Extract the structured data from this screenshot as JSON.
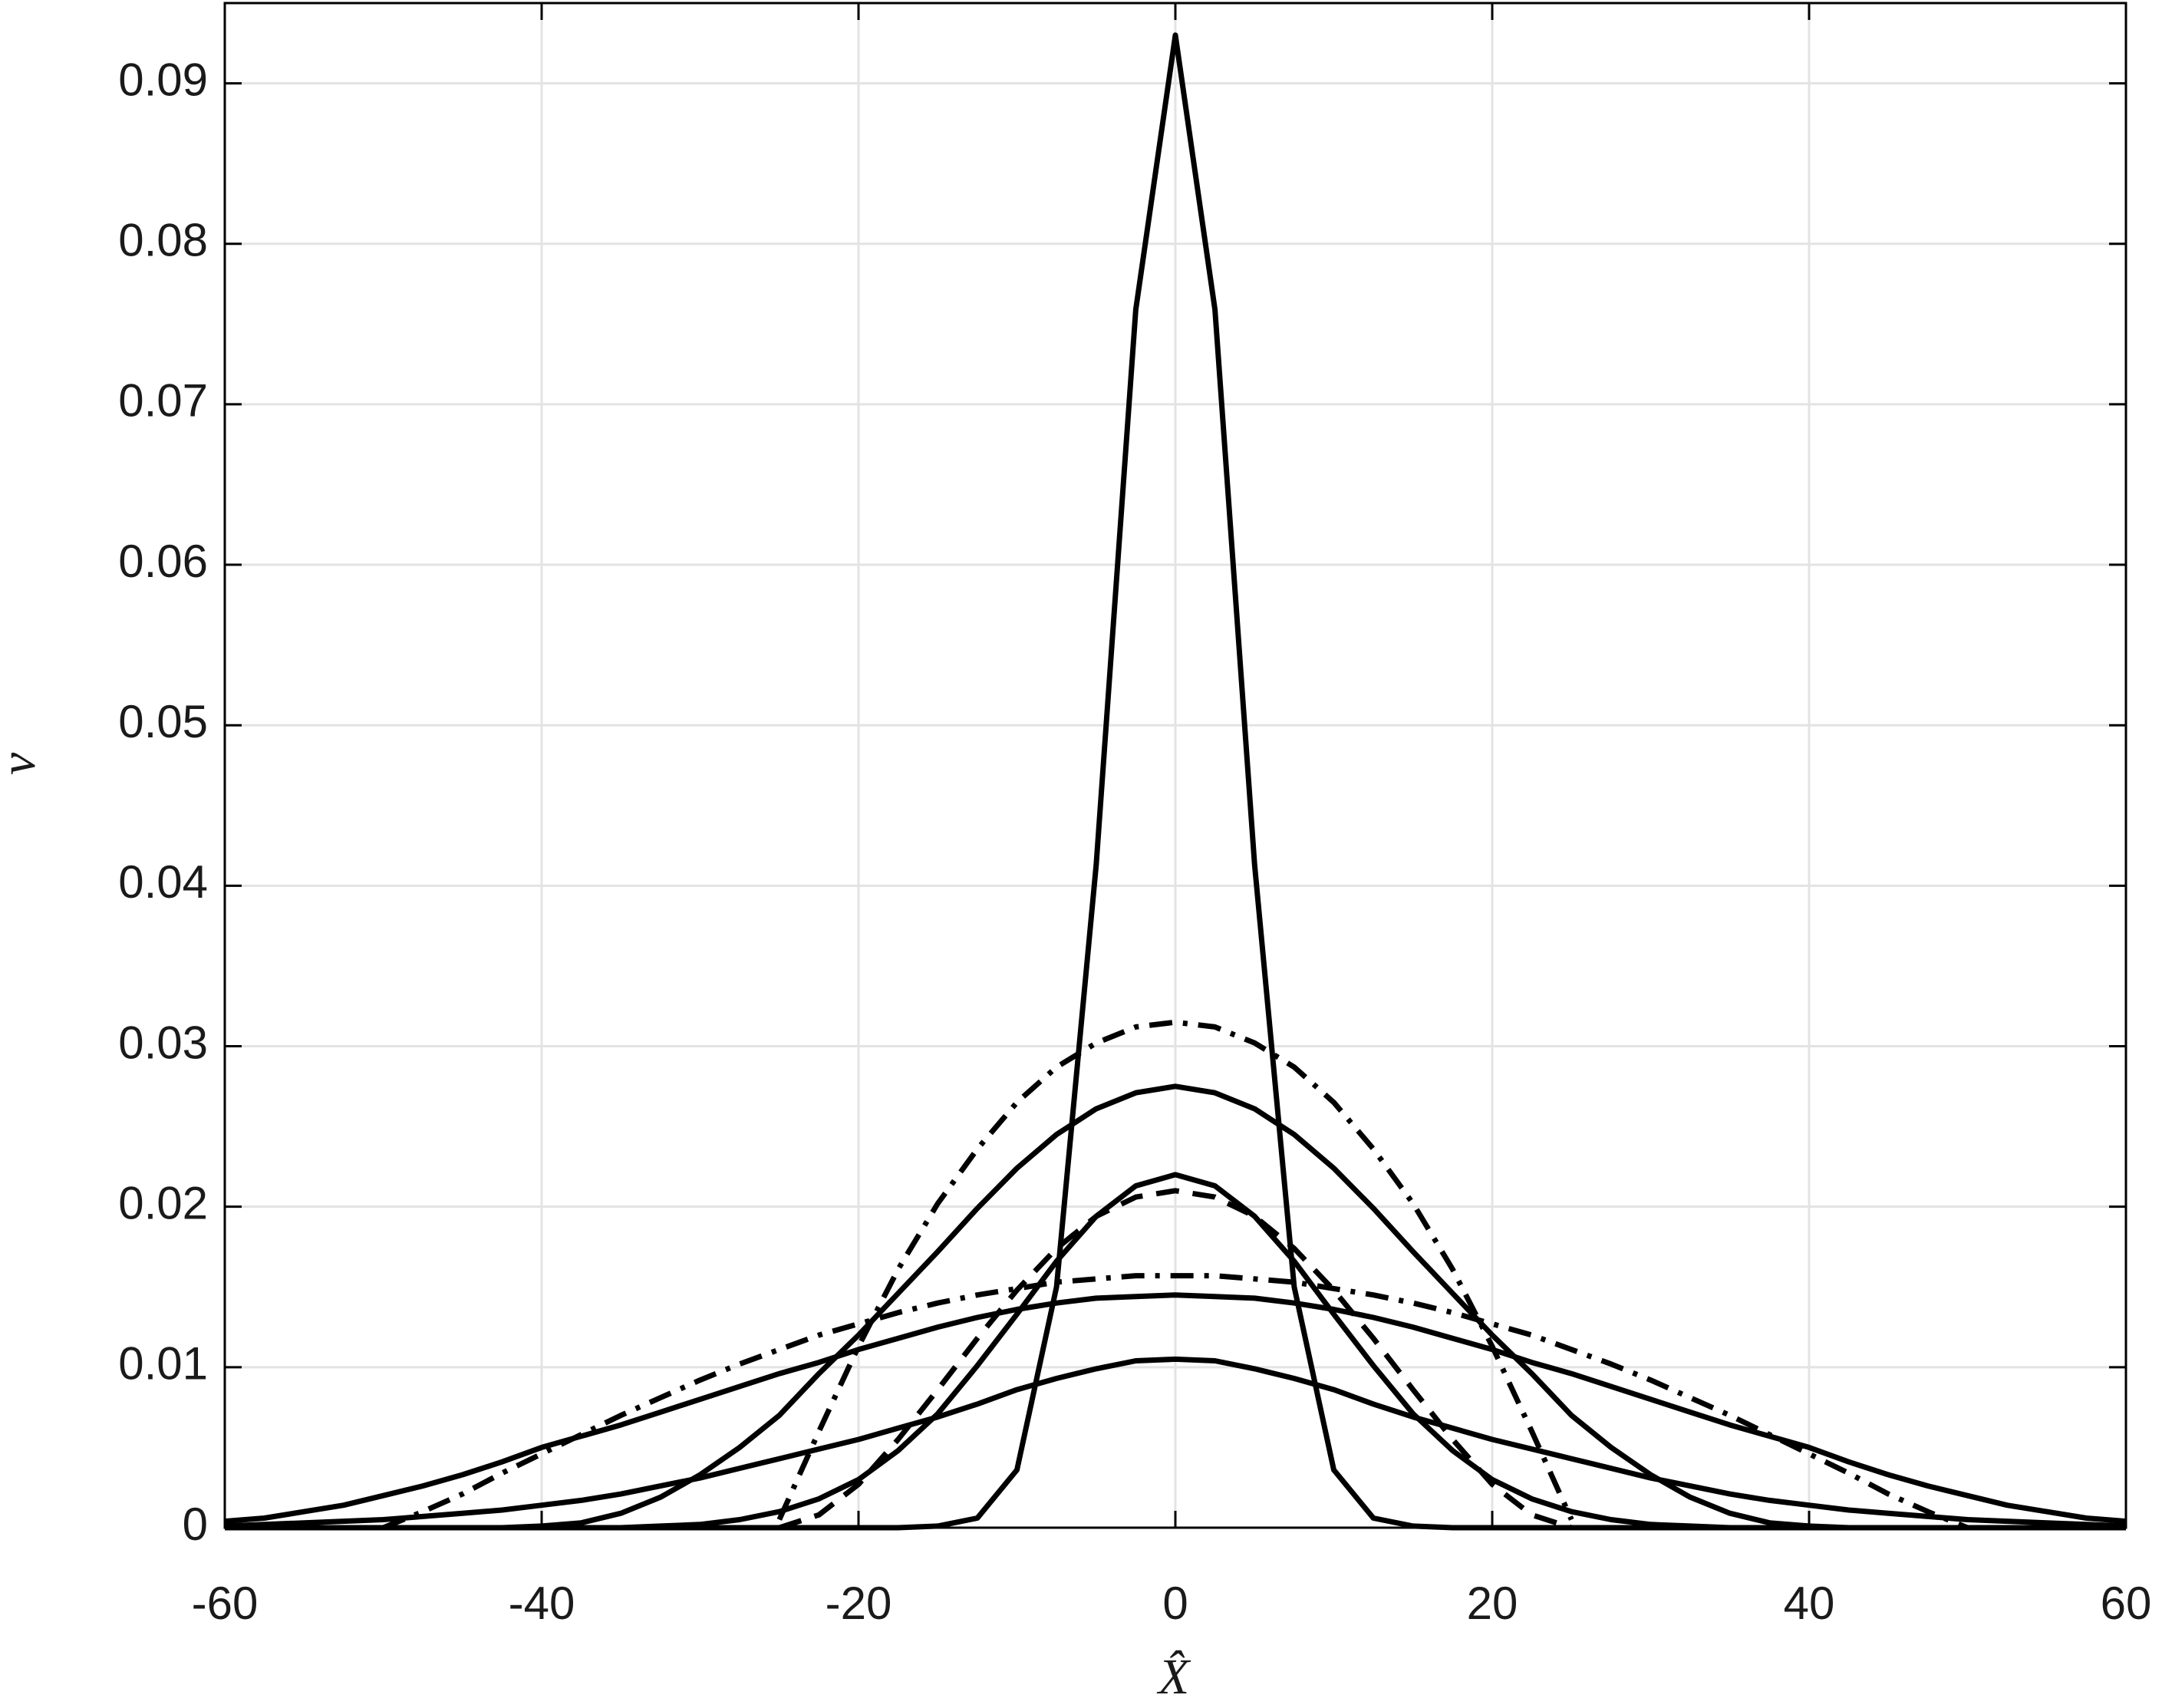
{
  "chart_data": {
    "type": "line",
    "xlabel": "X̂",
    "ylabel": "v",
    "xlim": [
      -60,
      60
    ],
    "xticks": [
      -60,
      -40,
      -20,
      0,
      20,
      40,
      60
    ],
    "ylim": [
      0,
      0.095
    ],
    "yticks": [
      0,
      0.01,
      0.02,
      0.03,
      0.04,
      0.05,
      0.06,
      0.07,
      0.08,
      0.09
    ],
    "grid": true,
    "x": [
      -60,
      -57.5,
      -55,
      -52.5,
      -50,
      -47.5,
      -45,
      -42.5,
      -40,
      -37.5,
      -35,
      -32.5,
      -30,
      -27.5,
      -25,
      -22.5,
      -20,
      -17.5,
      -15,
      -12.5,
      -10,
      -7.5,
      -5,
      -2.5,
      0,
      2.5,
      5,
      7.5,
      10,
      12.5,
      15,
      17.5,
      20,
      22.5,
      25,
      27.5,
      30,
      32.5,
      35,
      37.5,
      40,
      42.5,
      45,
      47.5,
      50,
      52.5,
      55,
      57.5,
      60
    ],
    "series": [
      {
        "color": "#000000",
        "dash": "solid",
        "values": [
          0,
          0,
          0,
          0,
          0,
          0,
          0,
          0,
          0,
          0,
          0,
          0,
          0,
          0,
          0,
          0,
          0,
          0,
          0.0001,
          0.0006,
          0.0036,
          0.015,
          0.0413,
          0.0759,
          0.093,
          0.0759,
          0.0413,
          0.015,
          0.0036,
          0.0006,
          0.0001,
          0,
          0,
          0,
          0,
          0,
          0,
          0,
          0,
          0,
          0,
          0,
          0,
          0,
          0,
          0,
          0,
          0,
          0
        ]
      },
      {
        "color": "#000000",
        "dash": "solid",
        "values": [
          0,
          0,
          0,
          0,
          0,
          0,
          0,
          0,
          0.0001,
          0.0003,
          0.0009,
          0.0019,
          0.0033,
          0.005,
          0.007,
          0.0096,
          0.012,
          0.0146,
          0.0172,
          0.0199,
          0.0224,
          0.0245,
          0.0261,
          0.0271,
          0.0275,
          0.0271,
          0.0261,
          0.0245,
          0.0224,
          0.0199,
          0.0172,
          0.0146,
          0.012,
          0.0096,
          0.007,
          0.005,
          0.0033,
          0.0019,
          0.0009,
          0.0003,
          0.0001,
          0,
          0,
          0,
          0,
          0,
          0,
          0,
          0
        ]
      },
      {
        "color": "#000000",
        "dash": "dashdot",
        "values": [
          null,
          null,
          null,
          null,
          null,
          null,
          null,
          null,
          null,
          null,
          null,
          null,
          null,
          null,
          0.0005,
          0.006,
          0.0113,
          0.0161,
          0.0202,
          0.0236,
          0.0265,
          0.0287,
          0.0302,
          0.0312,
          0.0315,
          0.0312,
          0.0302,
          0.0287,
          0.0265,
          0.0236,
          0.0202,
          0.0161,
          0.0113,
          0.006,
          0.0005,
          null,
          null,
          null,
          null,
          null,
          null,
          null,
          null,
          null,
          null,
          null,
          null,
          null,
          null
        ]
      },
      {
        "color": "#000000",
        "dash": "solid",
        "values": [
          0,
          0,
          0,
          0,
          0,
          0,
          0,
          0,
          0,
          0,
          0,
          0.0001,
          0.0002,
          0.0005,
          0.001,
          0.0018,
          0.003,
          0.0048,
          0.0071,
          0.0101,
          0.0133,
          0.0166,
          0.0194,
          0.0213,
          0.022,
          0.0213,
          0.0194,
          0.0166,
          0.0133,
          0.0101,
          0.0071,
          0.0048,
          0.003,
          0.0018,
          0.001,
          0.0005,
          0.0002,
          0.0001,
          0,
          0,
          0,
          0,
          0,
          0,
          0,
          0,
          0,
          0,
          0
        ]
      },
      {
        "color": "#000000",
        "dash": "dashed",
        "values": [
          null,
          null,
          null,
          null,
          null,
          null,
          null,
          null,
          null,
          null,
          null,
          null,
          null,
          null,
          0,
          0.0008,
          0.0027,
          0.0055,
          0.0086,
          0.0118,
          0.0148,
          0.0174,
          0.0194,
          0.0206,
          0.021,
          0.0206,
          0.0194,
          0.0174,
          0.0148,
          0.0118,
          0.0086,
          0.0055,
          0.0027,
          0.0008,
          0,
          null,
          null,
          null,
          null,
          null,
          null,
          null,
          null,
          null,
          null,
          null,
          null,
          null,
          null
        ]
      },
      {
        "color": "#000000",
        "dash": "solid",
        "values": [
          0.0004,
          0.0006,
          0.001,
          0.0014,
          0.002,
          0.0026,
          0.0033,
          0.0041,
          0.005,
          0.0057,
          0.0064,
          0.0072,
          0.008,
          0.0088,
          0.0096,
          0.0103,
          0.0111,
          0.0118,
          0.0125,
          0.0131,
          0.0136,
          0.014,
          0.0143,
          0.0144,
          0.0145,
          0.0144,
          0.0143,
          0.014,
          0.0136,
          0.0131,
          0.0125,
          0.0118,
          0.0111,
          0.0103,
          0.0096,
          0.0088,
          0.008,
          0.0072,
          0.0064,
          0.0057,
          0.005,
          0.0041,
          0.0033,
          0.0026,
          0.002,
          0.0014,
          0.001,
          0.0006,
          0.0004
        ]
      },
      {
        "color": "#000000",
        "dash": "dashdot",
        "values": [
          null,
          null,
          null,
          null,
          0,
          0.001,
          0.0021,
          0.0034,
          0.0046,
          0.0058,
          0.007,
          0.0081,
          0.0092,
          0.0102,
          0.0111,
          0.012,
          0.0127,
          0.0134,
          0.014,
          0.0145,
          0.0149,
          0.0153,
          0.0155,
          0.0157,
          0.0157,
          0.0157,
          0.0155,
          0.0153,
          0.0149,
          0.0145,
          0.014,
          0.0134,
          0.0127,
          0.012,
          0.0111,
          0.0102,
          0.0092,
          0.0081,
          0.007,
          0.0058,
          0.0046,
          0.0034,
          0.0021,
          0.001,
          0,
          null,
          null,
          null,
          null
        ]
      },
      {
        "color": "#000000",
        "dash": "solid",
        "values": [
          0.0001,
          0.0002,
          0.0003,
          0.0004,
          0.0005,
          0.0007,
          0.0009,
          0.0011,
          0.0014,
          0.0017,
          0.0021,
          0.0026,
          0.0031,
          0.0037,
          0.0043,
          0.0049,
          0.0055,
          0.0062,
          0.0069,
          0.0077,
          0.0086,
          0.0093,
          0.0099,
          0.0104,
          0.0105,
          0.0104,
          0.0099,
          0.0093,
          0.0086,
          0.0077,
          0.0069,
          0.0062,
          0.0055,
          0.0049,
          0.0043,
          0.0037,
          0.0031,
          0.0026,
          0.0021,
          0.0017,
          0.0014,
          0.0011,
          0.0009,
          0.0007,
          0.0005,
          0.0004,
          0.0003,
          0.0002,
          0.0001
        ]
      }
    ]
  }
}
